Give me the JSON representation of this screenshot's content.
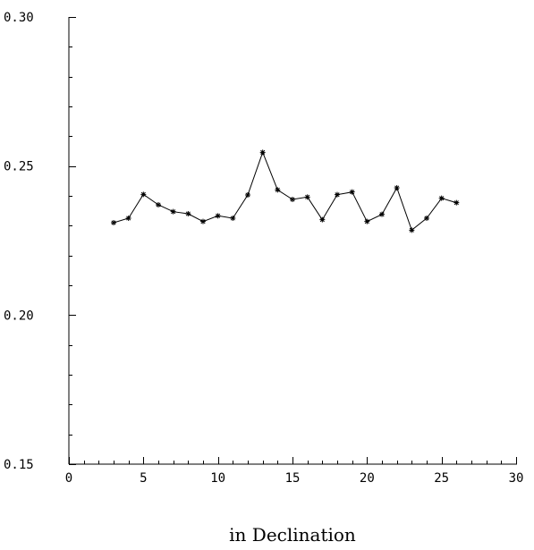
{
  "chart_data": {
    "type": "line",
    "title": "",
    "xlabel": "in Declination",
    "ylabel": "",
    "xlim": [
      0,
      30
    ],
    "ylim": [
      0.15,
      0.3
    ],
    "x_ticks": [
      0,
      5,
      10,
      15,
      20,
      25,
      30
    ],
    "y_ticks": [
      0.15,
      0.2,
      0.25,
      0.3
    ],
    "x_tick_labels": [
      "0",
      "5",
      "10",
      "15",
      "20",
      "25",
      "30"
    ],
    "y_tick_labels": [
      "0.15",
      "0.20",
      "0.25",
      "0.30"
    ],
    "x_minor_step": 1,
    "y_minor_step": 0.01,
    "grid": false,
    "marker": "star",
    "color": "#000000",
    "series": [
      {
        "x": [
          3,
          4,
          5,
          6,
          7,
          8,
          9,
          10,
          11,
          12,
          13,
          14,
          15,
          16,
          17,
          18,
          19,
          20,
          21,
          22,
          23,
          24,
          25,
          26
        ],
        "values": [
          0.231,
          0.2325,
          0.2405,
          0.237,
          0.2347,
          0.234,
          0.2314,
          0.2333,
          0.2325,
          0.2403,
          0.2546,
          0.242,
          0.2388,
          0.2396,
          0.232,
          0.2404,
          0.2413,
          0.2314,
          0.2338,
          0.2427,
          0.2285,
          0.2325,
          0.2392,
          0.2377
        ]
      }
    ]
  }
}
